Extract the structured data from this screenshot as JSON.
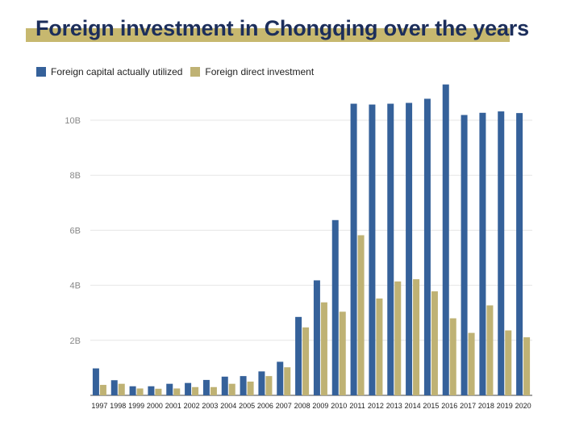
{
  "chart_data": {
    "type": "bar",
    "title": "Foreign investment in Chongqing over the years",
    "categories": [
      "1997",
      "1998",
      "1999",
      "2000",
      "2001",
      "2002",
      "2003",
      "2004",
      "2005",
      "2006",
      "2007",
      "2008",
      "2009",
      "2010",
      "2011",
      "2012",
      "2013",
      "2014",
      "2015",
      "2016",
      "2017",
      "2018",
      "2019",
      "2020"
    ],
    "series": [
      {
        "name": "Foreign capital actually utilized",
        "color": "#35619a",
        "values": [
          0.98,
          0.55,
          0.33,
          0.33,
          0.42,
          0.45,
          0.56,
          0.68,
          0.7,
          0.87,
          1.22,
          2.85,
          4.18,
          6.37,
          10.6,
          10.57,
          10.6,
          10.63,
          10.78,
          11.3,
          10.19,
          10.27,
          10.32,
          10.26
        ]
      },
      {
        "name": "Foreign direct investment",
        "color": "#bfb274",
        "values": [
          0.38,
          0.42,
          0.25,
          0.24,
          0.25,
          0.3,
          0.3,
          0.42,
          0.5,
          0.7,
          1.02,
          2.47,
          3.38,
          3.04,
          5.82,
          3.52,
          4.14,
          4.22,
          3.78,
          2.8,
          2.27,
          3.27,
          2.36,
          2.11
        ]
      }
    ],
    "yticks": [
      {
        "value": 2,
        "label": "2B"
      },
      {
        "value": 4,
        "label": "4B"
      },
      {
        "value": 6,
        "label": "6B"
      },
      {
        "value": 8,
        "label": "8B"
      },
      {
        "value": 10,
        "label": "10B"
      }
    ],
    "ylim": [
      0,
      12
    ],
    "xlabel": "",
    "ylabel": "",
    "grid": true,
    "legend_position": "top-left"
  }
}
